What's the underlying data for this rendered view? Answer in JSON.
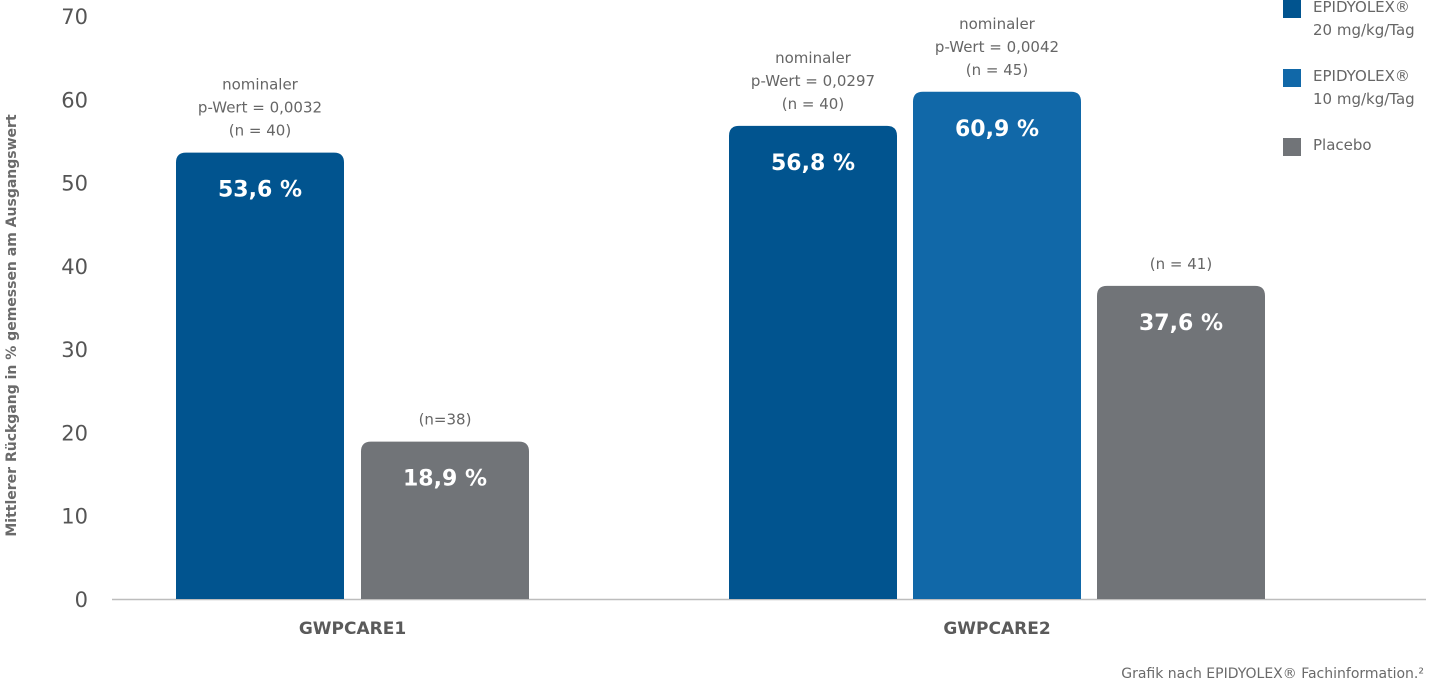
{
  "chart_data": {
    "type": "bar",
    "ylabel": "Mittlerer Rückgang in % gemessen am Ausgangswert",
    "ylim": [
      0,
      70
    ],
    "yticks": [
      "0",
      "10",
      "20",
      "30",
      "40",
      "50",
      "60",
      "70"
    ],
    "grid": false,
    "legend_position": "top-right",
    "groups": [
      {
        "name": "GWPCARE1",
        "bars": [
          {
            "series": "EPIDYOLEX® 20 mg/kg/Tag",
            "value": 53.6,
            "label": "53,6 %",
            "annotation": [
              "nominaler",
              "p-Wert = 0,0032",
              "(n = 40)"
            ],
            "color": "#01548f"
          },
          {
            "series": "Placebo",
            "value": 18.9,
            "label": "18,9 %",
            "annotation": [
              "(n=38)"
            ],
            "color": "#717478"
          }
        ]
      },
      {
        "name": "GWPCARE2",
        "bars": [
          {
            "series": "EPIDYOLEX® 20 mg/kg/Tag",
            "value": 56.8,
            "label": "56,8 %",
            "annotation": [
              "nominaler",
              "p-Wert = 0,0297",
              "(n = 40)"
            ],
            "color": "#01548f"
          },
          {
            "series": "EPIDYOLEX® 10 mg/kg/Tag",
            "value": 60.9,
            "label": "60,9 %",
            "annotation": [
              "nominaler",
              "p-Wert = 0,0042",
              "(n = 45)"
            ],
            "color": "#1168a8"
          },
          {
            "series": "Placebo",
            "value": 37.6,
            "label": "37,6 %",
            "annotation": [
              "(n = 41)"
            ],
            "color": "#717478"
          }
        ]
      }
    ],
    "legend": [
      {
        "lines": [
          "EPIDYOLEX®",
          "20 mg/kg/Tag"
        ],
        "color": "#01548f"
      },
      {
        "lines": [
          "EPIDYOLEX®",
          "10 mg/kg/Tag"
        ],
        "color": "#1168a8"
      },
      {
        "lines": [
          "Placebo"
        ],
        "color": "#717478"
      }
    ]
  },
  "footnote": "Grafik nach EPIDYOLEX® Fachinformation.²"
}
